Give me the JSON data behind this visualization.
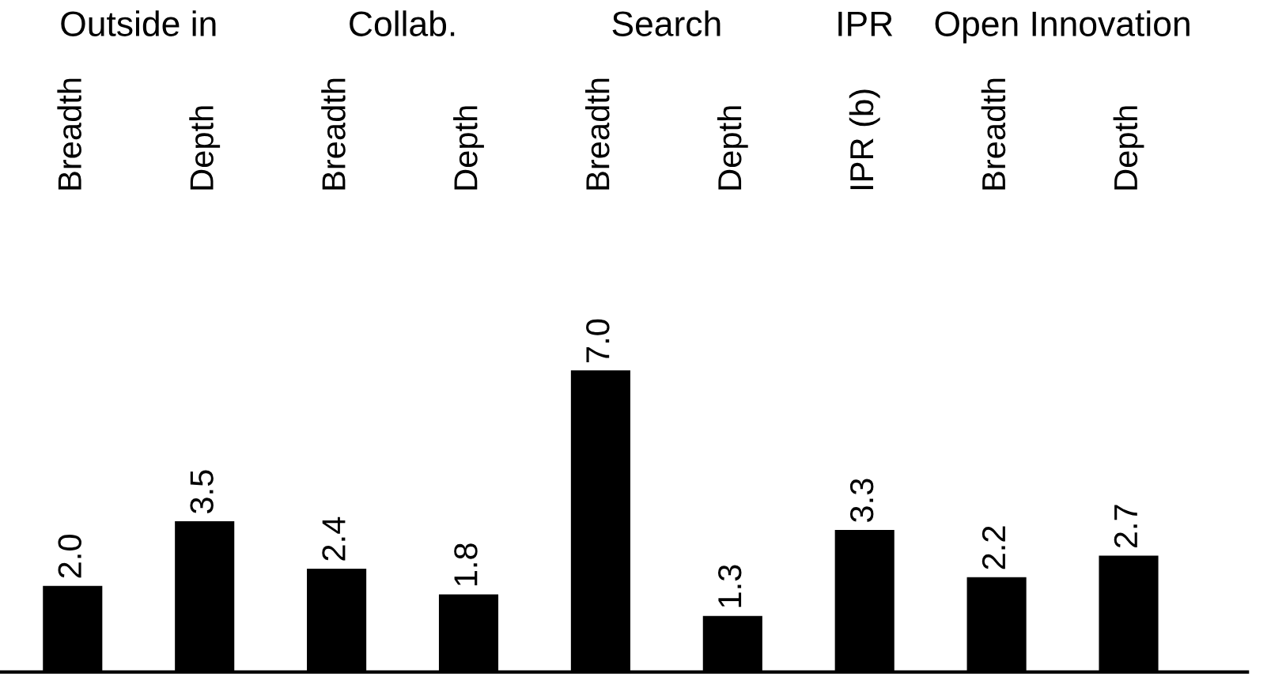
{
  "chart_data": {
    "type": "bar",
    "categories": [
      "Breadth",
      "Depth",
      "Breadth",
      "Depth",
      "Breadth",
      "Depth",
      "IPR (b)",
      "Breadth",
      "Depth"
    ],
    "values": [
      2.0,
      3.5,
      2.4,
      1.8,
      7.0,
      1.3,
      3.3,
      2.2,
      2.7
    ],
    "color": "#000000",
    "value_labels": [
      "2.0",
      "3.5",
      "2.4",
      "1.8",
      "7.0",
      "1.3",
      "3.3",
      "2.2",
      "2.7"
    ],
    "grid": false,
    "legend": false,
    "tick_labels": "x",
    "annotations": [
      "Outside in",
      "Collab.",
      "Search",
      "IPR",
      "Open Innovation"
    ]
  }
}
